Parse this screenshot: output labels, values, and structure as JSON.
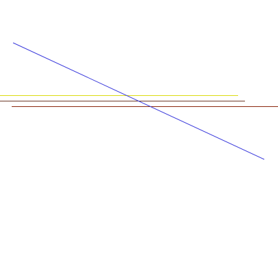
{
  "lines": [
    {
      "id": "yellow",
      "color": "#dcdc14"
    },
    {
      "id": "brown",
      "color": "#6e3c2a"
    },
    {
      "id": "dark-red",
      "color": "#8c2a10"
    },
    {
      "id": "blue",
      "color": "#3c3cdc"
    }
  ]
}
